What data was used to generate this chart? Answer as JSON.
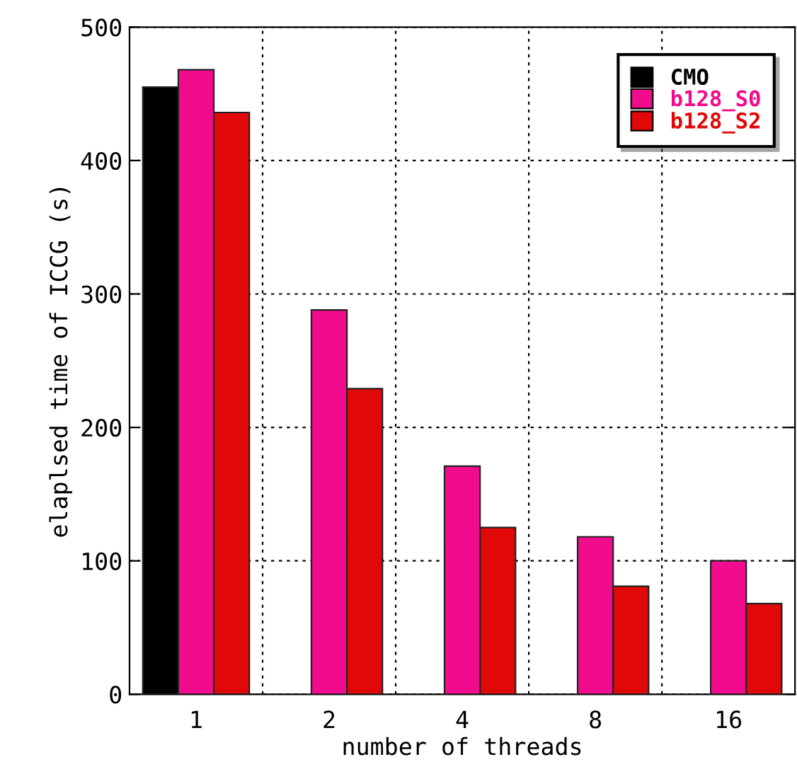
{
  "chart_data": {
    "type": "bar",
    "xlabel": "number of threads",
    "ylabel": "elaplsed time of ICCG (s)",
    "categories": [
      "1",
      "2",
      "4",
      "8",
      "16"
    ],
    "series": [
      {
        "name": "CMO",
        "color": "#000000",
        "values": [
          455,
          null,
          null,
          null,
          null
        ]
      },
      {
        "name": "b128_S0",
        "color": "#f00c8c",
        "values": [
          468,
          288,
          171,
          118,
          100
        ]
      },
      {
        "name": "b128_S2",
        "color": "#e00808",
        "values": [
          436,
          229,
          125,
          81,
          68
        ]
      }
    ],
    "ylim": [
      0,
      500
    ],
    "yticks": [
      0,
      100,
      200,
      300,
      400,
      500
    ],
    "grid": true,
    "legend": "top right"
  }
}
